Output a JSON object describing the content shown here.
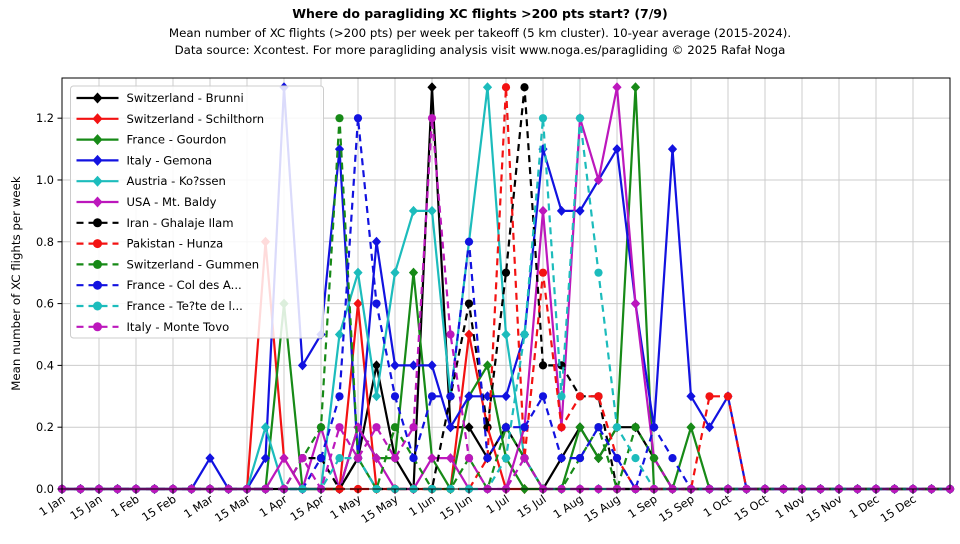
{
  "header": {
    "title": "Where do paragliding XC flights >200 pts start? (7/9)",
    "subtitle1": "Mean number of XC flights (>200 pts) per week per takeoff (5 km cluster). 10-year average (2015-2024).",
    "subtitle2": "Data source: Xcontest. For more paragliding analysis visit www.noga.es/paragliding © 2025 Rafał Noga"
  },
  "chart_data": {
    "type": "line",
    "title": "Where do paragliding XC flights >200 pts start? (7/9)",
    "xlabel": "",
    "ylabel": "Mean number of XC flights per week",
    "ylim": [
      0,
      1.33
    ],
    "y_ticks": [
      0.0,
      0.2,
      0.4,
      0.6,
      0.8,
      1.0,
      1.2
    ],
    "grid": true,
    "legend_position": "upper-left",
    "weeks": 49,
    "x_tick_weeks": [
      0,
      2,
      4,
      6,
      8,
      10,
      12,
      14,
      16,
      18,
      20,
      22,
      24,
      26,
      28,
      30,
      32,
      34,
      36,
      38,
      40,
      42,
      44,
      46
    ],
    "x_tick_labels": [
      "1 Jan",
      "15 Jan",
      "1 Feb",
      "15 Feb",
      "1 Mar",
      "15 Mar",
      "1 Apr",
      "15 Apr",
      "1 May",
      "15 May",
      "1 Jun",
      "15 Jun",
      "1 Jul",
      "15 Jul",
      "1 Aug",
      "15 Aug",
      "1 Sep",
      "15 Sep",
      "1 Oct",
      "15 Oct",
      "1 Nov",
      "15 Nov",
      "1 Dec",
      "15 Dec"
    ],
    "series": [
      {
        "name": "Switzerland - Brunni",
        "color": "#000000",
        "style": "solid",
        "marker": "diamond",
        "values": [
          0,
          0,
          0,
          0,
          0,
          0,
          0,
          0,
          0,
          0,
          0,
          0,
          0,
          0,
          0,
          0,
          0.1,
          0.4,
          0.1,
          0,
          1.3,
          0.2,
          0.2,
          0.1,
          0.2,
          0.1,
          0,
          0.1,
          0.2,
          0.1,
          0.2,
          0.2,
          0.1,
          0,
          0,
          0,
          0,
          0,
          0,
          0,
          0,
          0,
          0,
          0,
          0,
          0,
          0,
          0,
          0
        ]
      },
      {
        "name": "Switzerland - Schilthorn",
        "color": "#f31212",
        "style": "solid",
        "marker": "diamond",
        "values": [
          0,
          0,
          0,
          0,
          0,
          0,
          0,
          0,
          0,
          0,
          0,
          0.8,
          0.1,
          0,
          0,
          0,
          0.6,
          0,
          0,
          0,
          0,
          0,
          0.5,
          0.2,
          0,
          0,
          0,
          0,
          0,
          0,
          0,
          0,
          0,
          0,
          0,
          0,
          0,
          0,
          0,
          0,
          0,
          0,
          0,
          0,
          0,
          0,
          0,
          0,
          0
        ]
      },
      {
        "name": "France - Gourdon",
        "color": "#178a17",
        "style": "solid",
        "marker": "diamond",
        "values": [
          0,
          0,
          0,
          0,
          0,
          0,
          0,
          0,
          0,
          0,
          0,
          0,
          0.6,
          0,
          0,
          0,
          0.2,
          0.1,
          0.1,
          0.7,
          0.1,
          0,
          0.3,
          0.4,
          0.1,
          0,
          0,
          0,
          0.2,
          0.1,
          0.2,
          1.3,
          0,
          0,
          0.2,
          0,
          0,
          0,
          0,
          0,
          0,
          0,
          0,
          0,
          0,
          0,
          0,
          0,
          0
        ]
      },
      {
        "name": "Italy - Gemona",
        "color": "#1212e0",
        "style": "solid",
        "marker": "diamond",
        "values": [
          0,
          0,
          0,
          0,
          0,
          0,
          0,
          0,
          0.1,
          0,
          0,
          0.1,
          1.3,
          0.4,
          0.5,
          1.1,
          0.1,
          0.8,
          0.4,
          0.4,
          0.4,
          0.2,
          0.3,
          0.3,
          0.3,
          0.5,
          1.1,
          0.9,
          0.9,
          1.0,
          1.1,
          0.6,
          0.2,
          1.1,
          0.3,
          0.2,
          0.3,
          0,
          0,
          0,
          0,
          0,
          0,
          0,
          0,
          0,
          0,
          0,
          0
        ]
      },
      {
        "name": "Austria - Ko?ssen",
        "color": "#1cbcbc",
        "style": "solid",
        "marker": "diamond",
        "values": [
          0,
          0,
          0,
          0,
          0,
          0,
          0,
          0,
          0,
          0,
          0,
          0.2,
          0,
          0,
          0,
          0.5,
          0.7,
          0.3,
          0.7,
          0.9,
          0.9,
          0.3,
          0.8,
          1.3,
          0.5,
          0.1,
          0,
          0,
          0,
          0,
          0,
          0,
          0,
          0,
          0,
          0,
          0,
          0,
          0,
          0,
          0,
          0,
          0,
          0,
          0,
          0,
          0,
          0,
          0
        ]
      },
      {
        "name": "USA - Mt. Baldy",
        "color": "#bc17bc",
        "style": "solid",
        "marker": "diamond",
        "values": [
          0,
          0,
          0,
          0,
          0,
          0,
          0,
          0,
          0,
          0,
          0,
          0,
          0.1,
          0,
          0.2,
          0,
          0.2,
          0.1,
          0,
          0,
          0.1,
          0.1,
          0,
          0,
          0,
          0.2,
          0.9,
          0.2,
          1.2,
          1.0,
          1.3,
          0.6,
          0.1,
          0,
          0,
          0,
          0,
          0,
          0,
          0,
          0,
          0,
          0,
          0,
          0,
          0,
          0,
          0,
          0
        ]
      },
      {
        "name": "Iran - Ghalaje Ilam",
        "color": "#000000",
        "style": "dashed",
        "marker": "circle",
        "values": [
          0,
          0,
          0,
          0,
          0,
          0,
          0,
          0,
          0,
          0,
          0,
          0,
          0,
          0.1,
          0.1,
          0,
          0.1,
          0,
          0,
          0,
          0,
          0.3,
          0.6,
          0.2,
          0.7,
          1.3,
          0.4,
          0.4,
          0.3,
          0.3,
          0,
          0,
          0,
          0,
          0,
          0,
          0,
          0,
          0,
          0,
          0,
          0,
          0,
          0,
          0,
          0,
          0,
          0,
          0
        ]
      },
      {
        "name": "Pakistan - Hunza",
        "color": "#f31212",
        "style": "dashed",
        "marker": "circle",
        "values": [
          0,
          0,
          0,
          0,
          0,
          0,
          0,
          0,
          0,
          0,
          0,
          0,
          0,
          0,
          0,
          0,
          0,
          0,
          0,
          0,
          0,
          0,
          0,
          0.1,
          1.3,
          0.1,
          0.7,
          0.2,
          0.3,
          0.3,
          0.1,
          0,
          0,
          0,
          0,
          0.3,
          0.3,
          0,
          0,
          0,
          0,
          0,
          0,
          0,
          0,
          0,
          0,
          0,
          0
        ]
      },
      {
        "name": "Switzerland - Gummen",
        "color": "#178a17",
        "style": "dashed",
        "marker": "circle",
        "values": [
          0,
          0,
          0,
          0,
          0,
          0,
          0,
          0,
          0,
          0,
          0,
          0,
          0,
          0.1,
          0.2,
          1.2,
          0.1,
          0,
          0.2,
          0.1,
          0,
          0,
          0.1,
          0,
          0.2,
          0.1,
          0,
          0,
          0.1,
          0.2,
          0,
          0.2,
          0.1,
          0,
          0,
          0,
          0,
          0,
          0,
          0,
          0,
          0,
          0,
          0,
          0,
          0,
          0,
          0,
          0
        ]
      },
      {
        "name": "France - Col des A...",
        "color": "#1212e0",
        "style": "dashed",
        "marker": "circle",
        "values": [
          0,
          0,
          0,
          0,
          0,
          0,
          0,
          0,
          0,
          0,
          0,
          0,
          0,
          0,
          0.1,
          0.3,
          1.2,
          0.6,
          0.3,
          0.1,
          0.3,
          0.3,
          0.8,
          0.1,
          0.2,
          0.2,
          0.3,
          0.1,
          0.1,
          0.2,
          0.1,
          0,
          0.2,
          0.1,
          0,
          0,
          0,
          0,
          0,
          0,
          0,
          0,
          0,
          0,
          0,
          0,
          0,
          0,
          0
        ]
      },
      {
        "name": "France - Te?te de l...",
        "color": "#1cbcbc",
        "style": "dashed",
        "marker": "circle",
        "values": [
          0,
          0,
          0,
          0,
          0,
          0,
          0,
          0,
          0,
          0,
          0,
          0,
          0,
          0,
          0,
          0.1,
          0.1,
          0,
          0,
          0,
          0,
          0,
          0,
          0,
          0.1,
          0.5,
          1.2,
          0.3,
          1.2,
          0.7,
          0.2,
          0.1,
          0,
          0,
          0,
          0,
          0,
          0,
          0,
          0,
          0,
          0,
          0,
          0,
          0,
          0,
          0,
          0,
          0
        ]
      },
      {
        "name": "Italy - Monte Tovo",
        "color": "#bc17bc",
        "style": "dashed",
        "marker": "circle",
        "values": [
          0,
          0,
          0,
          0,
          0,
          0,
          0,
          0,
          0,
          0,
          0,
          0,
          0,
          0.1,
          0,
          0.2,
          0.1,
          0.2,
          0.1,
          0.2,
          1.2,
          0.5,
          0.1,
          0,
          0,
          0.1,
          0,
          0,
          0,
          0,
          0,
          0,
          0,
          0,
          0,
          0,
          0,
          0,
          0,
          0,
          0,
          0,
          0,
          0,
          0,
          0,
          0,
          0,
          0
        ]
      }
    ]
  }
}
